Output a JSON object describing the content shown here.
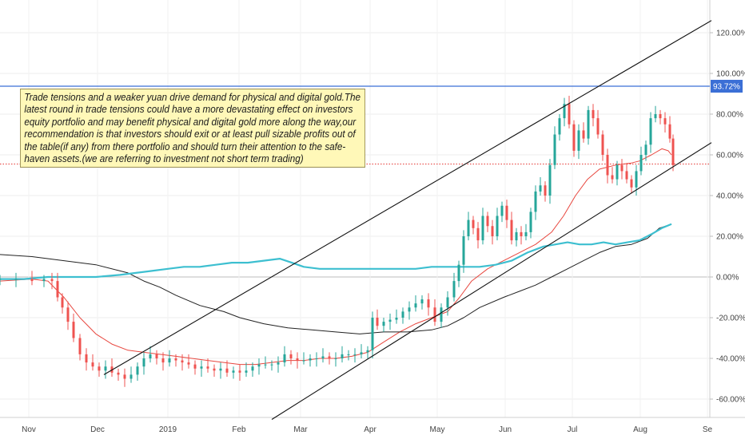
{
  "chart_data": {
    "type": "line",
    "y_ticks": [
      "120.00%",
      "100.00%",
      "80.00%",
      "60.00%",
      "40.00%",
      "20.00%",
      "0.00%",
      "-20.00%",
      "-40.00%",
      "-60.00%"
    ],
    "y_tick_values": [
      120,
      100,
      80,
      60,
      40,
      20,
      0,
      -20,
      -40,
      -60
    ],
    "x_ticks": [
      "Nov",
      "Dec",
      "2019",
      "Feb",
      "Mar",
      "Apr",
      "May",
      "Jun",
      "Jul",
      "Aug",
      "Se"
    ],
    "x_tick_days": [
      36,
      122,
      210,
      299,
      376,
      463,
      547,
      632,
      716,
      801,
      885
    ],
    "ylim": [
      -64,
      130
    ],
    "price_label": "93.72%",
    "price_level": 93.72,
    "dotted_level": 55.5,
    "colors": {
      "up": "#26a69a",
      "down": "#ef5350",
      "ma_short": "#e8473f",
      "ma_long": "#222222",
      "compare": "#3dbfd0",
      "horizontal": "#3b6fd6",
      "dotted": "#e53935",
      "channel": "#111111"
    },
    "series": [
      {
        "key": "ma_short",
        "points": [
          [
            0,
            -2
          ],
          [
            40,
            -1
          ],
          [
            60,
            -2
          ],
          [
            80,
            -10
          ],
          [
            100,
            -20
          ],
          [
            120,
            -28
          ],
          [
            140,
            -33
          ],
          [
            160,
            -36
          ],
          [
            180,
            -37
          ],
          [
            200,
            -38
          ],
          [
            220,
            -39
          ],
          [
            240,
            -40
          ],
          [
            260,
            -41
          ],
          [
            280,
            -42
          ],
          [
            300,
            -43
          ],
          [
            320,
            -43
          ],
          [
            340,
            -42
          ],
          [
            360,
            -41
          ],
          [
            380,
            -41
          ],
          [
            400,
            -40
          ],
          [
            420,
            -40
          ],
          [
            440,
            -39
          ],
          [
            460,
            -37
          ],
          [
            480,
            -32
          ],
          [
            500,
            -27
          ],
          [
            520,
            -23
          ],
          [
            540,
            -20
          ],
          [
            560,
            -17
          ],
          [
            575,
            -10
          ],
          [
            590,
            -2
          ],
          [
            610,
            4
          ],
          [
            630,
            8
          ],
          [
            650,
            12
          ],
          [
            670,
            16
          ],
          [
            690,
            22
          ],
          [
            705,
            30
          ],
          [
            720,
            40
          ],
          [
            735,
            48
          ],
          [
            750,
            53
          ],
          [
            770,
            55
          ],
          [
            790,
            56
          ],
          [
            800,
            57
          ],
          [
            815,
            60
          ],
          [
            828,
            63
          ],
          [
            836,
            62
          ],
          [
            840,
            60
          ]
        ]
      },
      {
        "key": "ma_long",
        "points": [
          [
            0,
            11
          ],
          [
            40,
            10
          ],
          [
            80,
            8
          ],
          [
            120,
            6
          ],
          [
            160,
            2
          ],
          [
            180,
            -2
          ],
          [
            200,
            -5
          ],
          [
            220,
            -9
          ],
          [
            250,
            -14
          ],
          [
            280,
            -17
          ],
          [
            300,
            -20
          ],
          [
            330,
            -23
          ],
          [
            360,
            -25
          ],
          [
            390,
            -26
          ],
          [
            420,
            -27
          ],
          [
            450,
            -28
          ],
          [
            480,
            -27
          ],
          [
            510,
            -27
          ],
          [
            540,
            -26
          ],
          [
            560,
            -24
          ],
          [
            580,
            -20
          ],
          [
            600,
            -15
          ],
          [
            630,
            -10
          ],
          [
            650,
            -7
          ],
          [
            670,
            -4
          ],
          [
            690,
            0
          ],
          [
            710,
            4
          ],
          [
            730,
            8
          ],
          [
            750,
            12
          ],
          [
            770,
            15
          ],
          [
            790,
            16
          ],
          [
            810,
            19
          ],
          [
            825,
            24
          ],
          [
            840,
            26
          ]
        ]
      },
      {
        "key": "compare",
        "points": [
          [
            0,
            -1
          ],
          [
            30,
            -1
          ],
          [
            60,
            0
          ],
          [
            90,
            0
          ],
          [
            120,
            0
          ],
          [
            150,
            1
          ],
          [
            170,
            2
          ],
          [
            190,
            3
          ],
          [
            210,
            4
          ],
          [
            230,
            5
          ],
          [
            250,
            5
          ],
          [
            270,
            6
          ],
          [
            290,
            7
          ],
          [
            310,
            7
          ],
          [
            330,
            8
          ],
          [
            350,
            9
          ],
          [
            365,
            7
          ],
          [
            380,
            5
          ],
          [
            400,
            4
          ],
          [
            420,
            4
          ],
          [
            440,
            4
          ],
          [
            460,
            4
          ],
          [
            480,
            4
          ],
          [
            500,
            4
          ],
          [
            520,
            4
          ],
          [
            540,
            5
          ],
          [
            560,
            5
          ],
          [
            580,
            5
          ],
          [
            600,
            5
          ],
          [
            620,
            6
          ],
          [
            640,
            8
          ],
          [
            660,
            12
          ],
          [
            680,
            15
          ],
          [
            695,
            16
          ],
          [
            710,
            17
          ],
          [
            725,
            16
          ],
          [
            740,
            16
          ],
          [
            755,
            17
          ],
          [
            770,
            16
          ],
          [
            785,
            17
          ],
          [
            800,
            18
          ],
          [
            815,
            21
          ],
          [
            828,
            24
          ],
          [
            840,
            26
          ]
        ]
      }
    ],
    "candles": [
      [
        0,
        -1
      ],
      [
        20,
        -1
      ],
      [
        40,
        -2
      ],
      [
        55,
        -1
      ],
      [
        65,
        -2
      ],
      [
        72,
        -10
      ],
      [
        78,
        -15
      ],
      [
        85,
        -22
      ],
      [
        92,
        -30
      ],
      [
        100,
        -38
      ],
      [
        108,
        -42
      ],
      [
        116,
        -44
      ],
      [
        124,
        -46
      ],
      [
        132,
        -44
      ],
      [
        140,
        -47
      ],
      [
        148,
        -48
      ],
      [
        156,
        -50
      ],
      [
        164,
        -48
      ],
      [
        172,
        -44
      ],
      [
        180,
        -40
      ],
      [
        188,
        -38
      ],
      [
        196,
        -40
      ],
      [
        204,
        -42
      ],
      [
        212,
        -40
      ],
      [
        220,
        -41
      ],
      [
        228,
        -42
      ],
      [
        236,
        -43
      ],
      [
        244,
        -45
      ],
      [
        252,
        -44
      ],
      [
        260,
        -45
      ],
      [
        268,
        -46
      ],
      [
        276,
        -45
      ],
      [
        284,
        -47
      ],
      [
        292,
        -46
      ],
      [
        300,
        -47
      ],
      [
        308,
        -46
      ],
      [
        316,
        -44
      ],
      [
        324,
        -43
      ],
      [
        332,
        -43
      ],
      [
        340,
        -43
      ],
      [
        348,
        -42
      ],
      [
        356,
        -38
      ],
      [
        364,
        -40
      ],
      [
        372,
        -41
      ],
      [
        380,
        -41
      ],
      [
        388,
        -40
      ],
      [
        396,
        -40
      ],
      [
        404,
        -39
      ],
      [
        412,
        -40
      ],
      [
        420,
        -40
      ],
      [
        428,
        -38
      ],
      [
        436,
        -38
      ],
      [
        444,
        -38
      ],
      [
        452,
        -37
      ],
      [
        460,
        -36
      ],
      [
        466,
        -20
      ],
      [
        472,
        -24
      ],
      [
        480,
        -22
      ],
      [
        488,
        -21
      ],
      [
        496,
        -20
      ],
      [
        504,
        -17
      ],
      [
        512,
        -15
      ],
      [
        520,
        -13
      ],
      [
        528,
        -11
      ],
      [
        536,
        -15
      ],
      [
        544,
        -22
      ],
      [
        552,
        -15
      ],
      [
        560,
        -10
      ],
      [
        568,
        -2
      ],
      [
        574,
        6
      ],
      [
        580,
        20
      ],
      [
        586,
        28
      ],
      [
        592,
        24
      ],
      [
        598,
        18
      ],
      [
        604,
        30
      ],
      [
        610,
        25
      ],
      [
        616,
        20
      ],
      [
        622,
        30
      ],
      [
        628,
        35
      ],
      [
        634,
        28
      ],
      [
        640,
        18
      ],
      [
        646,
        22
      ],
      [
        652,
        20
      ],
      [
        658,
        22
      ],
      [
        664,
        32
      ],
      [
        670,
        42
      ],
      [
        676,
        45
      ],
      [
        682,
        40
      ],
      [
        688,
        55
      ],
      [
        694,
        70
      ],
      [
        700,
        78
      ],
      [
        706,
        85
      ],
      [
        712,
        75
      ],
      [
        718,
        62
      ],
      [
        724,
        72
      ],
      [
        730,
        68
      ],
      [
        736,
        82
      ],
      [
        742,
        78
      ],
      [
        748,
        70
      ],
      [
        754,
        60
      ],
      [
        760,
        50
      ],
      [
        766,
        48
      ],
      [
        772,
        55
      ],
      [
        778,
        52
      ],
      [
        784,
        48
      ],
      [
        790,
        44
      ],
      [
        796,
        52
      ],
      [
        802,
        60
      ],
      [
        808,
        65
      ],
      [
        814,
        78
      ],
      [
        820,
        80
      ],
      [
        826,
        78
      ],
      [
        832,
        75
      ],
      [
        838,
        68
      ],
      [
        842,
        55
      ]
    ],
    "channel_lines": [
      {
        "from": [
          130,
          -48
        ],
        "to": [
          890,
          126
        ]
      },
      {
        "from": [
          340,
          -70
        ],
        "to": [
          890,
          66
        ]
      }
    ],
    "annotation": "Trade tensions and a weaker yuan drive demand for physical and digital gold.The latest round in trade tensions could have a more devastating effect on investors equity portfolio and may benefit physical and digital gold more along the way,our recommendation is that investors should exit or at least pull sizable profits out of the table(if any) from there portfolio and should turn their attention to the safe-haven assets.(we are referring to investment not short term trading)"
  }
}
